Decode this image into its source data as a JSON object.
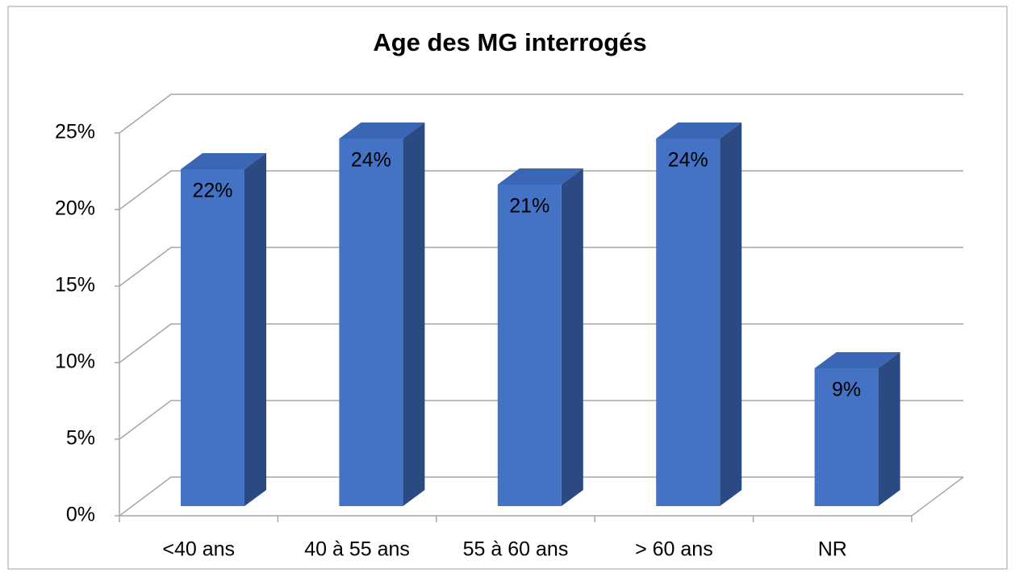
{
  "chart_data": {
    "type": "bar",
    "title": "Age des MG interrogés",
    "categories": [
      "<40 ans",
      "40 à 55 ans",
      "55 à 60 ans",
      "> 60 ans",
      "NR"
    ],
    "values": [
      22,
      24,
      21,
      24,
      9
    ],
    "value_labels": [
      "22%",
      "24%",
      "21%",
      "24%",
      "9%"
    ],
    "color": "#4472c4",
    "ylim": [
      0,
      25
    ],
    "yticks": [
      {
        "value": 0,
        "label": "0%"
      },
      {
        "value": 5,
        "label": "5%"
      },
      {
        "value": 10,
        "label": "10%"
      },
      {
        "value": 15,
        "label": "15%"
      },
      {
        "value": 20,
        "label": "20%"
      },
      {
        "value": 25,
        "label": "25%"
      }
    ],
    "grid": true
  }
}
